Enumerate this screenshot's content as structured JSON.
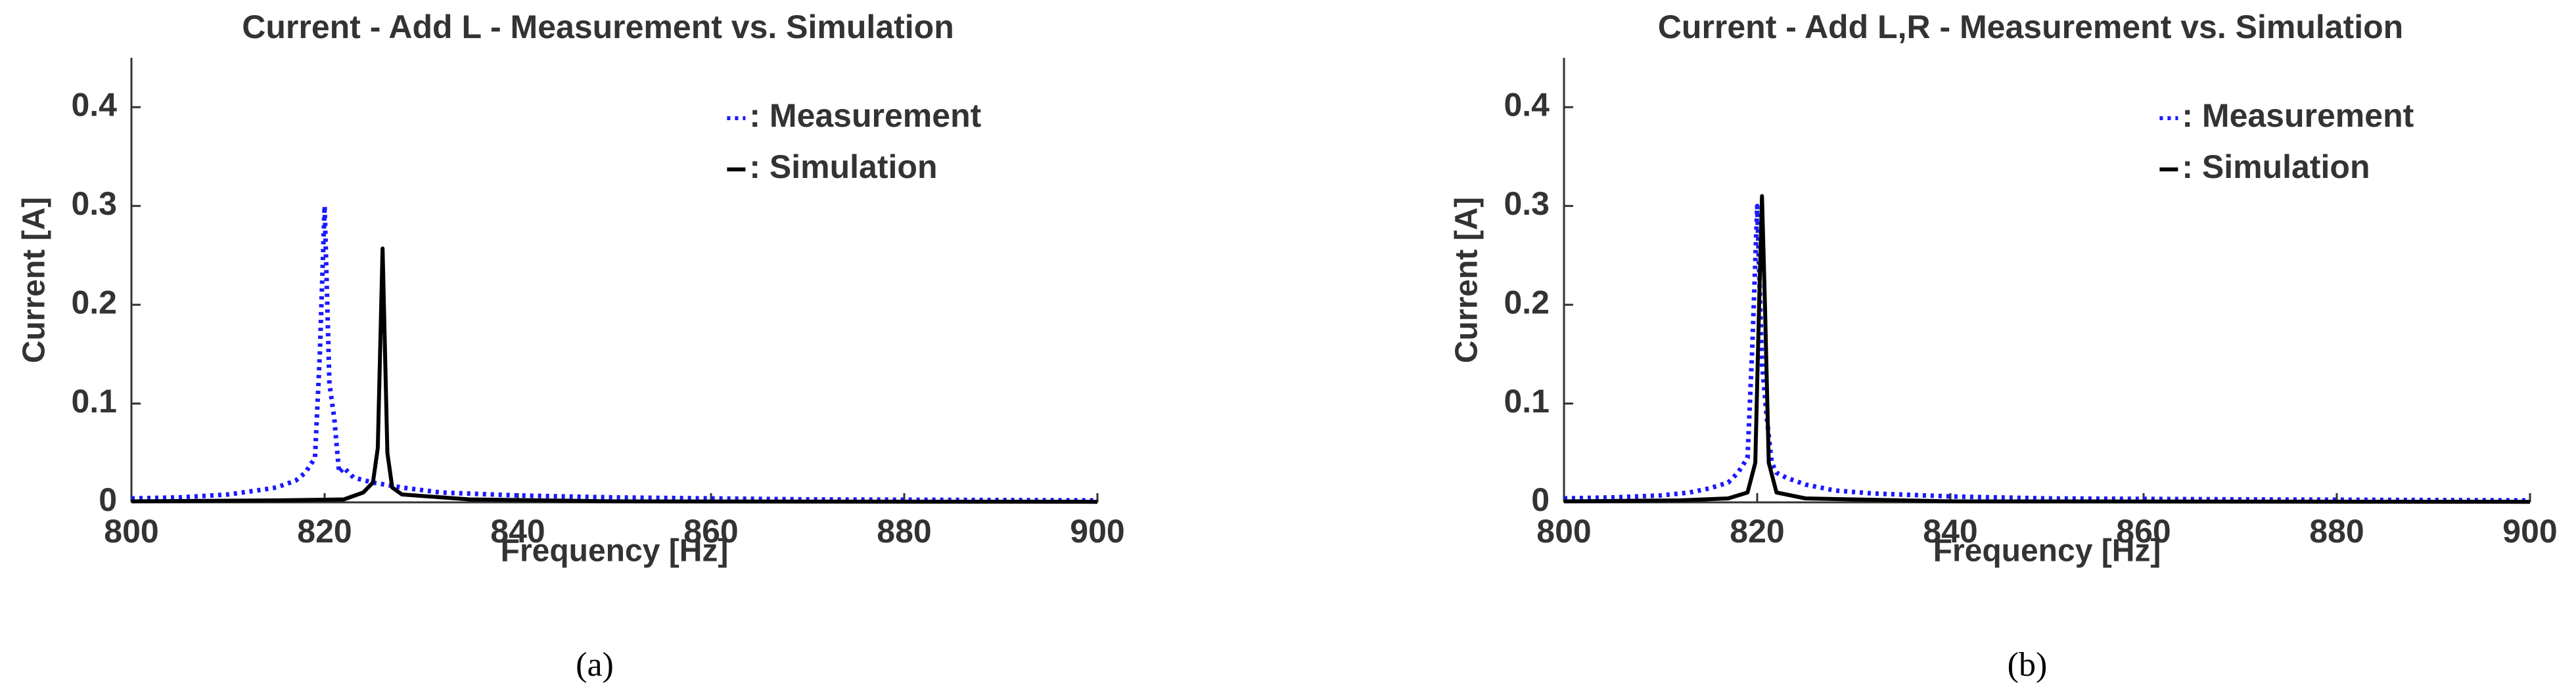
{
  "chart_data": [
    {
      "type": "line",
      "title": "Current - Add L - Measurement vs. Simulation",
      "xlabel": "Frequency [Hz]",
      "ylabel": "Current [A]",
      "caption": "(a)",
      "xlim": [
        800,
        900
      ],
      "xticks": [
        800,
        820,
        840,
        860,
        880,
        900
      ],
      "ylim": [
        0,
        0.45
      ],
      "yticks": [
        0,
        0.1,
        0.2,
        0.3,
        0.4
      ],
      "grid": false,
      "legend": "upper right",
      "series": [
        {
          "name": ": Measurement",
          "color": "#1a1aff",
          "linestyle": "dotted",
          "x": [
            800,
            805,
            810,
            813,
            815,
            817,
            818,
            819,
            819.5,
            820,
            820.5,
            821,
            821.5,
            822,
            823,
            825,
            828,
            832,
            840,
            850,
            870,
            900
          ],
          "values": [
            0.004,
            0.005,
            0.008,
            0.012,
            0.015,
            0.022,
            0.03,
            0.045,
            0.15,
            0.3,
            0.12,
            0.085,
            0.03,
            0.035,
            0.025,
            0.02,
            0.015,
            0.01,
            0.007,
            0.005,
            0.003,
            0.002
          ]
        },
        {
          "name": ": Simulation",
          "color": "#000000",
          "linestyle": "solid",
          "x": [
            800,
            815,
            822,
            824,
            825,
            825.5,
            826,
            826.5,
            827,
            828,
            835,
            850,
            900
          ],
          "values": [
            0.001,
            0.002,
            0.003,
            0.01,
            0.02,
            0.055,
            0.257,
            0.05,
            0.015,
            0.008,
            0.003,
            0.001,
            0.0005
          ]
        }
      ]
    },
    {
      "type": "line",
      "title": "Current - Add L,R - Measurement vs. Simulation",
      "xlabel": "Frequency [Hz]",
      "ylabel": "Current [A]",
      "caption": "(b)",
      "xlim": [
        800,
        900
      ],
      "xticks": [
        800,
        820,
        840,
        860,
        880,
        900
      ],
      "ylim": [
        0,
        0.45
      ],
      "yticks": [
        0,
        0.1,
        0.2,
        0.3,
        0.4
      ],
      "grid": false,
      "legend": "upper right",
      "series": [
        {
          "name": ": Measurement",
          "color": "#1a1aff",
          "linestyle": "dotted",
          "x": [
            800,
            805,
            810,
            813,
            815,
            817,
            818,
            819,
            819.5,
            820,
            820.5,
            821,
            821.5,
            822,
            823,
            825,
            828,
            832,
            840,
            850,
            870,
            900
          ],
          "values": [
            0.004,
            0.005,
            0.007,
            0.01,
            0.014,
            0.02,
            0.03,
            0.045,
            0.16,
            0.3,
            0.14,
            0.085,
            0.04,
            0.03,
            0.025,
            0.018,
            0.012,
            0.009,
            0.006,
            0.004,
            0.003,
            0.002
          ]
        },
        {
          "name": ": Simulation",
          "color": "#000000",
          "linestyle": "solid",
          "x": [
            800,
            812,
            817,
            819,
            819.8,
            820.2,
            820.5,
            820.8,
            821.2,
            822,
            825,
            840,
            900
          ],
          "values": [
            0.001,
            0.002,
            0.004,
            0.01,
            0.04,
            0.2,
            0.31,
            0.2,
            0.04,
            0.01,
            0.004,
            0.001,
            0.0005
          ]
        }
      ]
    }
  ]
}
